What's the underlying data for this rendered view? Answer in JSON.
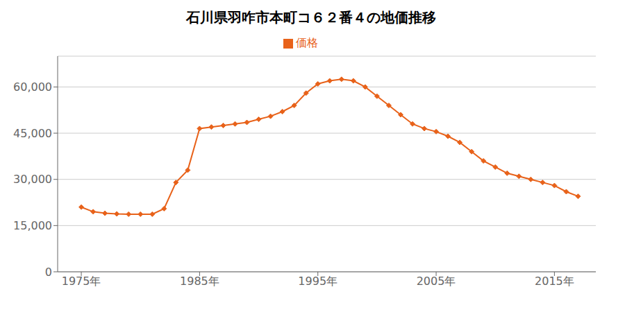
{
  "chart_data": {
    "type": "line",
    "title": "石川県羽咋市本町コ６２番４の地価推移",
    "series": [
      {
        "name": "価格",
        "color": "#E8621A",
        "marker": "diamond",
        "values": [
          21000,
          19500,
          19000,
          18800,
          18700,
          18700,
          18700,
          20500,
          29000,
          33000,
          46500,
          47000,
          47500,
          48000,
          48500,
          49500,
          50500,
          52000,
          54000,
          58000,
          61000,
          62000,
          62500,
          62000,
          60000,
          57000,
          54000,
          51000,
          48000,
          46500,
          45500,
          44000,
          42000,
          39000,
          36000,
          34000,
          32000,
          31000,
          30000,
          29000,
          28000,
          26000,
          24500
        ]
      }
    ],
    "x": [
      1975,
      1976,
      1977,
      1978,
      1979,
      1980,
      1981,
      1982,
      1983,
      1984,
      1985,
      1986,
      1987,
      1988,
      1989,
      1990,
      1991,
      1992,
      1993,
      1994,
      1995,
      1996,
      1997,
      1998,
      1999,
      2000,
      2001,
      2002,
      2003,
      2004,
      2005,
      2006,
      2007,
      2008,
      2009,
      2010,
      2011,
      2012,
      2013,
      2014,
      2015,
      2016,
      2017
    ],
    "xlim": [
      1973,
      2018.5
    ],
    "xticks": [
      {
        "value": 1975,
        "label": "1975年"
      },
      {
        "value": 1985,
        "label": "1985年"
      },
      {
        "value": 1995,
        "label": "1995年"
      },
      {
        "value": 2005,
        "label": "2005年"
      },
      {
        "value": 2015,
        "label": "2015年"
      }
    ],
    "ylim": [
      0,
      70000
    ],
    "yticks": [
      0,
      {
        "value": 15000,
        "label": "15,000"
      },
      {
        "value": 30000,
        "label": "30,000"
      },
      {
        "value": 45000,
        "label": "45,000"
      },
      {
        "value": 60000,
        "label": "60,000"
      }
    ],
    "grid": "y",
    "legend": "top"
  }
}
